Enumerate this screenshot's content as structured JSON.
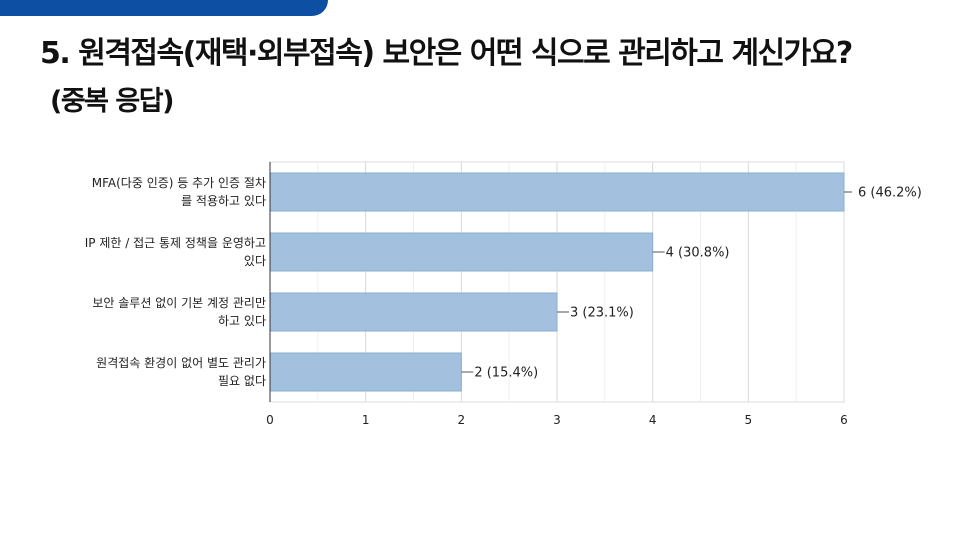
{
  "slide": {
    "title": "5. 원격접속(재택·외부접속) 보안은 어떤 식으로 관리하고 계신가요?",
    "subtitle": "(중복 응답)"
  },
  "colors": {
    "bar_fill": "#a3c1df",
    "bar_stroke": "#8aaed2",
    "top_bar": "#0d4fa3"
  },
  "chart_data": {
    "type": "bar",
    "orientation": "horizontal",
    "categories": [
      [
        "MFA(다중 인증) 등 추가 인증 절차",
        "를 적용하고 있다"
      ],
      [
        "IP 제한 / 접근 통제 정책을 운영하고",
        "있다"
      ],
      [
        "보안 솔루션 없이 기본 계정 관리만",
        "하고 있다"
      ],
      [
        "원격접속 환경이 없어 별도 관리가",
        "필요 없다"
      ]
    ],
    "values": [
      6,
      4,
      3,
      2
    ],
    "value_labels": [
      "6 (46.2%)",
      "4 (30.8%)",
      "3 (23.1%)",
      "2 (15.4%)"
    ],
    "xlim": [
      0,
      6
    ],
    "xticks": [
      "0",
      "1",
      "2",
      "3",
      "4",
      "5",
      "6"
    ],
    "grid": true,
    "legend": "none"
  }
}
